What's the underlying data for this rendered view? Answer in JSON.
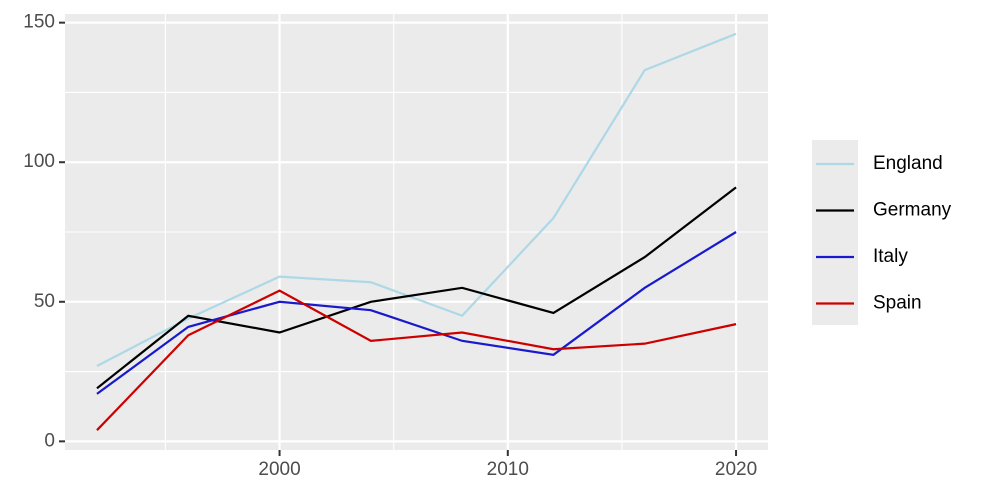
{
  "chart_data": {
    "type": "line",
    "x": [
      1992,
      1996,
      2000,
      2004,
      2008,
      2012,
      2016,
      2020
    ],
    "series": [
      {
        "name": "England",
        "color": "#add8e6",
        "values": [
          27,
          44,
          59,
          57,
          45,
          80,
          133,
          146
        ]
      },
      {
        "name": "Germany",
        "color": "#000000",
        "values": [
          19,
          45,
          39,
          50,
          55,
          46,
          66,
          91
        ]
      },
      {
        "name": "Italy",
        "color": "#1a1acd",
        "values": [
          17,
          41,
          50,
          47,
          36,
          31,
          55,
          75
        ]
      },
      {
        "name": "Spain",
        "color": "#cd0000",
        "values": [
          4,
          38,
          54,
          36,
          39,
          33,
          35,
          42
        ]
      }
    ],
    "xlim": [
      1990.6,
      2021.4
    ],
    "ylim": [
      -3.1,
      153.1
    ],
    "xticks": [
      2000,
      2010,
      2020
    ],
    "yticks": [
      0,
      50,
      100,
      150
    ],
    "x_minor_grid": [
      1995,
      2005,
      2015
    ],
    "y_minor_grid": [
      25,
      75,
      125
    ],
    "grid": true,
    "legend": "right"
  }
}
